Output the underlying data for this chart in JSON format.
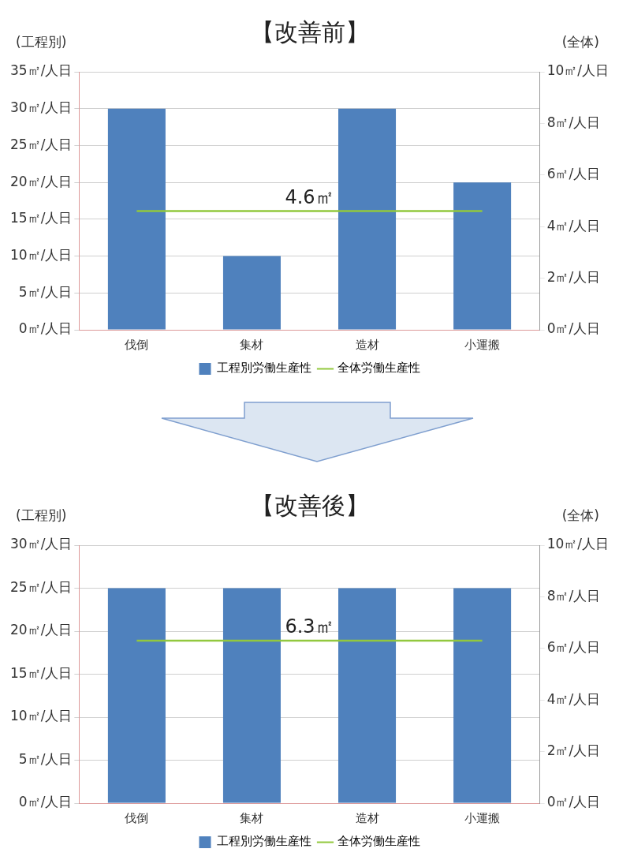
{
  "chart_data": [
    {
      "type": "bar",
      "title": "【改善前】",
      "ylabel": "(工程別)",
      "y2label": "(全体)",
      "categories": [
        "伐倒",
        "集材",
        "造材",
        "小運搬"
      ],
      "series": [
        {
          "name": "工程別労働生産性",
          "color": "#4f81bd",
          "values": [
            30,
            10,
            30,
            20
          ]
        },
        {
          "name": "全体労働生産性",
          "type": "line",
          "axis": "y2",
          "color": "#92c83e",
          "values": [
            4.6,
            4.6,
            4.6,
            4.6
          ]
        }
      ],
      "ylim": [
        0,
        35
      ],
      "yticks": [
        {
          "value": 0,
          "label": "0㎡/人日"
        },
        {
          "value": 5,
          "label": "5㎡/人日"
        },
        {
          "value": 10,
          "label": "10㎡/人日"
        },
        {
          "value": 15,
          "label": "15㎡/人日"
        },
        {
          "value": 20,
          "label": "20㎡/人日"
        },
        {
          "value": 25,
          "label": "25㎡/人日"
        },
        {
          "value": 30,
          "label": "30㎡/人日"
        },
        {
          "value": 35,
          "label": "35㎡/人日"
        }
      ],
      "y2lim": [
        0,
        10
      ],
      "y2ticks": [
        {
          "value": 0,
          "label": "0㎡/人日"
        },
        {
          "value": 2,
          "label": "2㎡/人日"
        },
        {
          "value": 4,
          "label": "4㎡/人日"
        },
        {
          "value": 6,
          "label": "6㎡/人日"
        },
        {
          "value": 8,
          "label": "8㎡/人日"
        },
        {
          "value": 10,
          "label": "10㎡/人日"
        }
      ],
      "annotations": [
        "4.6㎡"
      ],
      "grid": "y",
      "legend": "bottom",
      "marker": "none",
      "line_style": "solid"
    },
    {
      "type": "bar",
      "title": "【改善後】",
      "ylabel": "(工程別)",
      "y2label": "(全体)",
      "categories": [
        "伐倒",
        "集材",
        "造材",
        "小運搬"
      ],
      "series": [
        {
          "name": "工程別労働生産性",
          "color": "#4f81bd",
          "values": [
            25,
            25,
            25,
            25
          ]
        },
        {
          "name": "全体労働生産性",
          "type": "line",
          "axis": "y2",
          "color": "#92c83e",
          "values": [
            6.3,
            6.3,
            6.3,
            6.3
          ]
        }
      ],
      "ylim": [
        0,
        30
      ],
      "yticks": [
        {
          "value": 0,
          "label": "0㎡/人日"
        },
        {
          "value": 5,
          "label": "5㎡/人日"
        },
        {
          "value": 10,
          "label": "10㎡/人日"
        },
        {
          "value": 15,
          "label": "15㎡/人日"
        },
        {
          "value": 20,
          "label": "20㎡/人日"
        },
        {
          "value": 25,
          "label": "25㎡/人日"
        },
        {
          "value": 30,
          "label": "30㎡/人日"
        }
      ],
      "y2lim": [
        0,
        10
      ],
      "y2ticks": [
        {
          "value": 0,
          "label": "0㎡/人日"
        },
        {
          "value": 2,
          "label": "2㎡/人日"
        },
        {
          "value": 4,
          "label": "4㎡/人日"
        },
        {
          "value": 6,
          "label": "6㎡/人日"
        },
        {
          "value": 8,
          "label": "8㎡/人日"
        },
        {
          "value": 10,
          "label": "10㎡/人日"
        }
      ],
      "annotations": [
        "6.3㎡"
      ],
      "grid": "y",
      "legend": "bottom",
      "marker": "none",
      "line_style": "solid"
    }
  ]
}
